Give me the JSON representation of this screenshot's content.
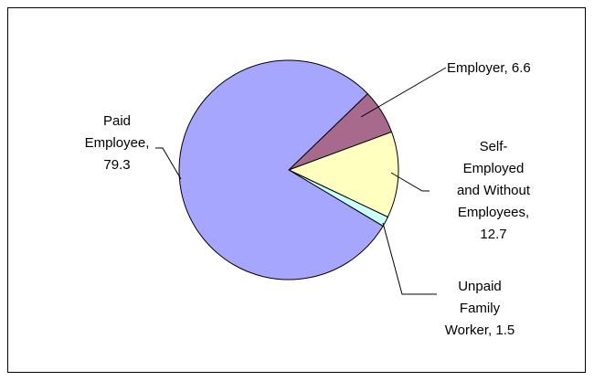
{
  "chart_data": {
    "type": "pie",
    "values": [
      6.6,
      12.7,
      1.5,
      79.3
    ],
    "value_labels": [
      "Employer, 6.6",
      "Self-\nEmployed\nand Without\nEmployees,\n12.7",
      "Unpaid\nFamily\nWorker, 1.5",
      "Paid\nEmployee,\n79.3"
    ],
    "colors": [
      "#a86a8c",
      "#ffffc0",
      "#ccffff",
      "#a6a6ff"
    ]
  }
}
